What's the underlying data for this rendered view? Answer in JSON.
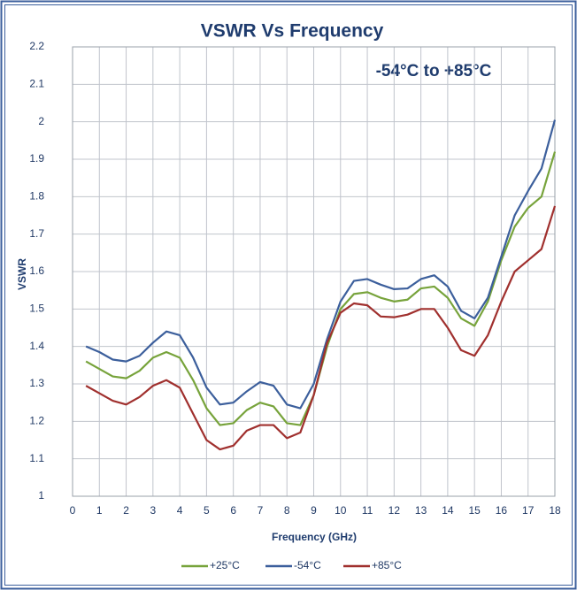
{
  "chart_data": {
    "type": "line",
    "title": "VSWR Vs Frequency",
    "annotation": "-54°C to +85°C",
    "x_label": "Frequency (GHz)",
    "y_label": "VSWR",
    "x": [
      0.5,
      1,
      1.5,
      2,
      2.5,
      3,
      3.5,
      4,
      4.5,
      5,
      5.5,
      6,
      6.5,
      7,
      7.5,
      8,
      8.5,
      9,
      9.5,
      10,
      10.5,
      11,
      11.5,
      12,
      12.5,
      13,
      13.5,
      14,
      14.5,
      15,
      15.5,
      16,
      16.5,
      17,
      17.5,
      18
    ],
    "series": [
      {
        "name": "+25°C",
        "color": "#77a33b",
        "values": [
          1.36,
          1.34,
          1.32,
          1.315,
          1.335,
          1.37,
          1.385,
          1.37,
          1.31,
          1.235,
          1.19,
          1.195,
          1.23,
          1.25,
          1.24,
          1.195,
          1.19,
          1.27,
          1.4,
          1.5,
          1.54,
          1.545,
          1.53,
          1.52,
          1.525,
          1.555,
          1.56,
          1.53,
          1.475,
          1.455,
          1.52,
          1.63,
          1.72,
          1.77,
          1.8,
          1.92
        ]
      },
      {
        "name": "-54°C",
        "color": "#3c5f9c",
        "values": [
          1.4,
          1.385,
          1.365,
          1.36,
          1.375,
          1.41,
          1.44,
          1.43,
          1.37,
          1.29,
          1.245,
          1.25,
          1.28,
          1.305,
          1.295,
          1.245,
          1.235,
          1.3,
          1.42,
          1.52,
          1.575,
          1.58,
          1.565,
          1.553,
          1.555,
          1.58,
          1.59,
          1.56,
          1.495,
          1.475,
          1.53,
          1.64,
          1.75,
          1.815,
          1.875,
          2.005
        ]
      },
      {
        "name": "+85°C",
        "color": "#a0302e",
        "values": [
          1.295,
          1.275,
          1.255,
          1.245,
          1.265,
          1.295,
          1.31,
          1.29,
          1.22,
          1.15,
          1.125,
          1.135,
          1.175,
          1.19,
          1.19,
          1.155,
          1.17,
          1.27,
          1.41,
          1.49,
          1.515,
          1.51,
          1.48,
          1.478,
          1.485,
          1.5,
          1.5,
          1.45,
          1.39,
          1.375,
          1.43,
          1.52,
          1.6,
          1.63,
          1.66,
          1.775
        ]
      }
    ],
    "xlim": [
      0,
      18
    ],
    "xticks": [
      0,
      1,
      2,
      3,
      4,
      5,
      6,
      7,
      8,
      9,
      10,
      11,
      12,
      13,
      14,
      15,
      16,
      17,
      18
    ],
    "ylim": [
      1,
      2.2
    ],
    "yticks": [
      1,
      1.1,
      1.2,
      1.3,
      1.4,
      1.5,
      1.6,
      1.7,
      1.8,
      1.9,
      2,
      2.1,
      2.2
    ],
    "grid": true,
    "legend": "bottom"
  }
}
